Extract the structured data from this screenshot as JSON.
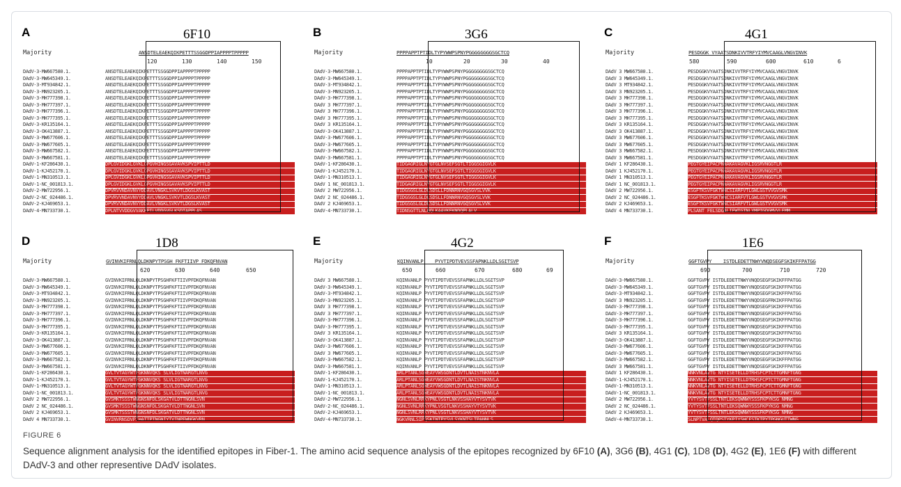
{
  "figure": {
    "label": "FIGURE 6",
    "caption_intro": "Sequence alignment analysis for the identified epitopes in Fiber-1. The amino acid sequence analysis of the epitopes recognized by 6F10 ",
    "caption_parts": [
      {
        "ref": "(A)",
        "sep": ", 3G6 "
      },
      {
        "ref": "(B)",
        "sep": ", 4G1 "
      },
      {
        "ref": "(C)",
        "sep": ", 1D8 "
      },
      {
        "ref": "(D)",
        "sep": ", 4G2 "
      },
      {
        "ref": "(E)",
        "sep": ", 1E6 "
      },
      {
        "ref": "(F)",
        "sep": " with different DAdV-3 and other representive DAdV isolates."
      }
    ]
  },
  "panels": [
    {
      "letter": "A",
      "title": "6F10",
      "majority": "Majority",
      "consensus": "ANSDTELEAEKQIKPETTTSSGGDPPIAPPPPTPPPPP",
      "ticks": [
        "120",
        "130",
        "140",
        "150"
      ],
      "rows": [
        {
          "name": "DAdV-3-MW667580.1.",
          "seq": "ANSDTELEAEKQIKPETTTSSGGDPPIAPPPPTPPPPP"
        },
        {
          "name": "DAdV-3-MW645349.1.",
          "seq": "ANSDTELEAEKQIKPETTTSSGGDPPIAPPPPTPPPPP"
        },
        {
          "name": "DAdV-3-MT934842.1.",
          "seq": "ANSDTELEAEKQIKPETTTSSGGDPPIAPPPPTPPPPP"
        },
        {
          "name": "DAdV-3-MN923205.1.",
          "seq": "ANSDTELEAEKQIKPETTTSSGGDPPIAPPPPTPPPPP"
        },
        {
          "name": "DAdV-3-MH777398.1.",
          "seq": "ANSDTELEAEKQIKPETTTSSGGDPPIAPPPPTPPPPP"
        },
        {
          "name": "DAdV-3-MH777397.1.",
          "seq": "ANSDTELEAEKQIKPETTTSSGGDPPIAPPPPTPPPPP"
        },
        {
          "name": "DAdV-3-MH777396.1.",
          "seq": "ANSDTELEAEKQIKPETTTSSGGDPPIAPPPPTPPPPP"
        },
        {
          "name": "DAdV-3-MH777395.1.",
          "seq": "ANSDTELEAEKQIKPETTTSSGGDPPIAPPPPTPPPPP"
        },
        {
          "name": "DAdV-3-KR135164.1.",
          "seq": "ANSDTELEAEKQIKPETTTSSGGDPPIAPPPPTPPPPP"
        },
        {
          "name": "DAdV-3-OK413887.1.",
          "seq": "ANSDTELEAEKQIKPETTTSSGGDPPIAPPPPTPPPPP"
        },
        {
          "name": "DAdV-3-MW677606.1.",
          "seq": "ANSDTELEAEKQIKPETTTSSGGDPPIAPPPPTPPPPP"
        },
        {
          "name": "DAdV-3-MW677605.1.",
          "seq": "ANSDTELEAEKQIKPETTTSSGGDPPIAPPPPTPPPPP"
        },
        {
          "name": "DAdV-3-MW667582.1.",
          "seq": "ANSDTELEAEKQIKPETTTSSGGDPPIAPPPPTPPPPP"
        },
        {
          "name": "DAdV-3-MW667581.1.",
          "seq": "ANSDTELEAEKQIKPETTTSSGGDPPIAPPPPTPPPPP"
        },
        {
          "name": "DAdV-1-KF286430.1.",
          "seq": "DPLGVIDGKLGVKLGPGVHINGSGAVAVKSPVIPTTLD",
          "red": true
        },
        {
          "name": "DAdV-1-KJ452170.1.",
          "seq": "DPLGVIDGKLGVKLGPGVHINGSGAVAVKSPVIPTTLD",
          "red": true
        },
        {
          "name": "DAdV-1-MN310513.1.",
          "seq": "DPLGVIDGKLGVKLGPGVHINGSGAVAVKSPVIPTTLD",
          "red": true
        },
        {
          "name": "DAdV-1-NC_001813.1.",
          "seq": "DPLGVIDGKLGVKLGPGVHINGSGAVAVKSPVIPTTLD",
          "red": true
        },
        {
          "name": "DAdV-2-MW722956.1.",
          "seq": "DPVRVVNDAVNVYDDAVLVNGKLSVKVTLDGSLKVAST",
          "red": true
        },
        {
          "name": "DAdV-2-NC_024486.1.",
          "seq": "DPVRVVNDAVNVYDDAVLVNGKLSVKVTLDGSLKVAST",
          "red": true
        },
        {
          "name": "DAdV-2-KJ469653.1.",
          "seq": "DPVRVVNDAVNVYDDAVLVNGKLSVKVTLDGSLKVAST",
          "red": true
        },
        {
          "name": "DAdV-4-MN733730.1.",
          "seq": "DPLNTVVDDGVVAKKPILVDDGVGLKSDTAPPLAS",
          "red": true
        }
      ]
    },
    {
      "letter": "B",
      "title": "3G6",
      "majority": "Majority",
      "consensus": "PPPPAPPTPTIDLTYPYWWPSPNYPGGGGGGGGSGCTCQ",
      "ticks": [
        "10",
        "20",
        "30",
        "40"
      ],
      "rows": [
        {
          "name": "DAdV-3-MW667580.1.",
          "seq": "PPPPAPPTPTIDLTYPYWWPSPNYPGGGGGGGGSGCTCQ"
        },
        {
          "name": "DAdV-3-MW645349.1.",
          "seq": "PPPPAPPTPTIDLTYPYWWPSPNYPGGGGGGGGSGCTCQ"
        },
        {
          "name": "DAdV-3-MT934842.1.",
          "seq": "PPPPAPPTPTIDLTYPYWWPSPNYPGGGGGGGGSGCTCQ"
        },
        {
          "name": "DAdV-3-MN923205.1.",
          "seq": "PPPPAPPTPTIDLTYPYWWPSPNYPGGGGGGGGSGCTCQ"
        },
        {
          "name": "DAdV-3-MH777398.1.",
          "seq": "PPPPAPPTPTIDLTYPYWWPSPNYPGGGGGGGGSGCTCQ"
        },
        {
          "name": "DAdV 3 MH777397.1.",
          "seq": "PPPPAPPTPTIDLTYPYWWPSPNYPGGGGGGGGSGCTCQ"
        },
        {
          "name": "DAdV 3 MH777396.1.",
          "seq": "PPPPAPPTPTIDLTYPYWWPSPNYPGGGGGGGGSGCTCQ"
        },
        {
          "name": "DAdV 3 MH777395.1.",
          "seq": "PPPPAPPTPTIDLTYPYWWPSPNYRGGGGGGGGSGCTCQ"
        },
        {
          "name": "DAdV 3 KR135164.1.",
          "seq": "PPPPAPPTPTIDLTYPYWWPSPNYPGGGGGGGGSGCTCQ"
        },
        {
          "name": "DAdV-3-OK413887.1.",
          "seq": "PPPPAPPTPTIDLTYPYWWPSPNYPGGGGGGGGSGCTCQ"
        },
        {
          "name": "DAdV-3-MW677606.1.",
          "seq": "PPPPAPPTPTIDLTYPYWWPSPNYPGGGGGGGGSGCTCQ"
        },
        {
          "name": "DAdV-3-MW677605.1.",
          "seq": "PPPPAPPTPTIDLTYPYWWPSPNYPGGGGGGGGSGCTCQ"
        },
        {
          "name": "DAdV-3-MW667582.1.",
          "seq": "PPPPAPPTPTIDLTYPYWWPSPNYPGGGGGGGGSGCTCQ"
        },
        {
          "name": "DAdV-3-MW667581.1.",
          "seq": "PPPPAPPTPTIDLTYPYWWPSPNYPGGGGGGGGSGCTCQ"
        },
        {
          "name": "DAdV-1-KF286430.1.",
          "seq": "TIDGAGRIGLNYGTGLNVSEFSGTLTIGGSGIGVLK",
          "red": true
        },
        {
          "name": "DAdV-1-KJ452170.1.",
          "seq": "TIDGAGRIGLNYGTGLNVSEFSGTLTIGGSGIGVLK",
          "red": true
        },
        {
          "name": "DAdV-1-MN310513.1.",
          "seq": "TIDGAGRIGLNYGTGLNVSEFSGTLTIGGSGIGVLK",
          "red": true
        },
        {
          "name": "DAdV 1 NC_001813.1.",
          "seq": "TIDGAGRIGLNYGTGLNVSEFSGTLTIGGSGIGVLK",
          "red": true
        },
        {
          "name": "DAdV 2 MW722956.1.",
          "seq": "TIDGSGSLGLDLSDSLLFDNNRNVGQSGVSLVVK",
          "red": true
        },
        {
          "name": "DAdV 2 NC_024486.1.",
          "seq": "TIDGSGSLGLDLSDSLLFDNNRNVGQSGVSLVVK",
          "red": true
        },
        {
          "name": "DAdV 2 KJ469653.1.",
          "seq": "TIDGSGSLGLDLSDSLLFDNNRNVGQSGVSLVVK",
          "red": true
        },
        {
          "name": "DAdV-4-MN733730.1.",
          "seq": "TIDNSGTTLNLQQLKAAVKFKNDQPLALV",
          "red": true
        }
      ]
    },
    {
      "letter": "C",
      "title": "4G1",
      "majority": "Majority",
      "consensus": "PESDGGK VYAATSDNKIVVTRFYIYMVCAAGLVNGVINVK",
      "ticks": [
        "580",
        "590",
        "600",
        "610",
        "6"
      ],
      "rows": [
        {
          "name": "DAdV 3 MW667580.1.",
          "seq": "PESDGGKVYAATSDNKIVVTRFYIYMVCAAGLVNGVINVK"
        },
        {
          "name": "DAdV 3 MW645349.1.",
          "seq": "PESDGGKVYAATSDNKIVVTRFYIYMVCAAGLVNGVINVK"
        },
        {
          "name": "DAdV 3 MT934842.1.",
          "seq": "PESDGGKVYAATSDNKIVVTRFYIYMVCAAGLVNGVINVK"
        },
        {
          "name": "DAdV 3 MN923205.1.",
          "seq": "PESDGGKVYAATSDNKIVVTRFYIYMVCAAGLVNGVINVK"
        },
        {
          "name": "DAdV 3 MH777398.1.",
          "seq": "PESDGGKVYAATSDNKIVVTRFYIYMVCAAGLVNGVINVK"
        },
        {
          "name": "DAdV 3 MH777397.1.",
          "seq": "PESDGGKVYAATSDNKIVVTRFYIYMVCAAGLVNGVINVK"
        },
        {
          "name": "DAdV 3 MH777396.1.",
          "seq": "PESDGGKVYAATSDNKIVVTRFYIYMVCAAGLVNGVINVK"
        },
        {
          "name": "DAdV 3 MH777395.1.",
          "seq": "PESDGGKVYAATSDNKIVVTRFYIYMVCAAGLVNGVINVK"
        },
        {
          "name": "DAdV 3 KR135164.1.",
          "seq": "PESDGGKVYAATSDNKIVVTRFYIYMVCAAGLVNGVINVK"
        },
        {
          "name": "DAdV 3 OK413887.1.",
          "seq": "PESDGGKVYAATSDNKIVVTRFYIYMVCAAGLVNGVINVK"
        },
        {
          "name": "DAdV 3 MW677606.1.",
          "seq": "PESDGGKVYAATSDNKIVVTRFYIYMVCAAGLVNGVINVK"
        },
        {
          "name": "DAdV 3 MW677605.1.",
          "seq": "PESDGGKVYAATSDNKIVVTRFYIYMVCAAGLVNGVINVK"
        },
        {
          "name": "DAdV 3 MW667582.1.",
          "seq": "PESDGGKVYAATSDNKIVVTRFYIYMVCAAGLVNGVINVK"
        },
        {
          "name": "DAdV 3 MW667581.1.",
          "seq": "PESDGGKVYAATSDNKIVVTRFYIYMVCAAGLVNGVINVK"
        },
        {
          "name": "DAdV 1 KF286430.1.",
          "seq": "PEGTGYEIPACPNNAKAVAGVKLIGSRVNGGTLR",
          "red": true
        },
        {
          "name": "DAdV 1 KJ452170.1.",
          "seq": "PEGTGYEIPACPNNAKAVAGVKLIGSRVNGGTLR",
          "red": true
        },
        {
          "name": "DAdV 1 MN310513.1.",
          "seq": "PEGTGYEIPACPNNAKAVAGVKLIGSRVNGGTLR",
          "red": true
        },
        {
          "name": "DAdV 1 NC_001813.1.",
          "seq": "PEGTGYEIPACPNNAKAVAGVKLIGSRVNGGTLR",
          "red": true
        },
        {
          "name": "DAdV 2 MW722956.1.",
          "seq": "ESGFTKSVFGKTWNCSIARFVTLGWLGSTVVGVSMK",
          "red": true
        },
        {
          "name": "DAdV 2 NC_024486.1.",
          "seq": "ESGFTKSVFGKTWNCSIARFVTLGWLGSTVVGVSMK",
          "red": true
        },
        {
          "name": "DAdV 2 KJ469653.1.",
          "seq": "ESGFTKSVFGKTWNCSIARFVTLGWLGSTVVGVSMK",
          "red": true
        },
        {
          "name": "DAdV 4 MN733730.1.",
          "seq": "PLSANT FELSDGALIFWTGTNLYMPTGDGMVVLEMM",
          "red": true
        }
      ]
    },
    {
      "letter": "D",
      "title": "1D8",
      "majority": "Majority",
      "consensus": "GVINVKIFRNLQLDKNPYTPSGH FKFTIIVP FDKQFNVAN",
      "ticks": [
        "620",
        "630",
        "640",
        "650"
      ],
      "rows": [
        {
          "name": "DAdV-3-MW667580.1.",
          "seq": "GVINVKIFRNLQLDKNPYTPSGHFKFTIIVPFDKQFNVAN"
        },
        {
          "name": "DAdV-3-MW645349.1.",
          "seq": "GVINVKIFRNLQLDKNPYTPSGHFKFTIIVPFDKQFNVAN"
        },
        {
          "name": "DAdV-3-MT934842.1.",
          "seq": "GVINVKIFRNLQLDKNPYTPSGHFKFTIIVPFDKQFNVAN"
        },
        {
          "name": "DAdV-3-MN923205.1.",
          "seq": "GVINVKIFRNLQLDKNPYTPSGHFKFTIIVPFDKQFNVAN"
        },
        {
          "name": "DAdV-3-MH777398.1.",
          "seq": "GVINVKIFRNLQLDKNPYTPSGHFKFTIIVPFDKQFNVAN"
        },
        {
          "name": "DAdV-3-MH777397.1.",
          "seq": "GVINVKIFRNLQLDKNPYTPSGHFKFTIIVPFDKQFNVAN"
        },
        {
          "name": "DAdV-3-MH777396.1.",
          "seq": "GVINVKIFRNLQLDKNPYTPSGHFKFTIIVPFDKQFNVAN"
        },
        {
          "name": "DAdV-3-MH777395.1.",
          "seq": "GVINVKIFRNLQLDKNPYTPSGHFKFTIIVPFDKQFNVAN"
        },
        {
          "name": "DAdV-3-KR135164.1.",
          "seq": "GVINVKIFRNLQLDKNPYTPSGHFKFTIIVPFDKQFNVAN"
        },
        {
          "name": "DAdV-3-OK413887.1.",
          "seq": "GVINVKIFRNLQLDKNPYTPSGHFKFTIIVPFDKQFNVAN"
        },
        {
          "name": "DAdV-3-MW677606.1.",
          "seq": "GVINVKIFRNLQLDKNPYTPSGHFKFTIIVPFDKQFNVAN"
        },
        {
          "name": "DAdV-3-MW677605.1.",
          "seq": "GVINVKIFRNLQLDKNPYTPSGHFKFTIIVPFDKQFNVAN"
        },
        {
          "name": "DAdV-3-MW667582.1.",
          "seq": "GVINVKIFRNLQLDKNPYTPSGHFKFTIIVPFDKQFNVAN"
        },
        {
          "name": "DAdV-3-MW667581.1.",
          "seq": "GVINVKIFRNLQLDKNPYTPSGHFKFTIIVPFDKQFNVAN"
        },
        {
          "name": "DAdV-1-KF286430.1.",
          "seq": "GVLTVTAGYWTFGKNNVQKS SLVLIGTNARGTLNVG",
          "red": true
        },
        {
          "name": "DAdV-1-KJ452170.1.",
          "seq": "GVLTVTAGYWTFGKNNVQKS SLVLIGTNARGTLNVG",
          "red": true
        },
        {
          "name": "DAdV-1-MN310513.1.",
          "seq": "GVLTVTAGYWTFGKNNVQKS SLVLIGTNARGTLNVG",
          "red": true
        },
        {
          "name": "DAdV-1-NC_001813.1.",
          "seq": "GVLTVTAGYWTFGKNNVQKS SLVLIGTNARGTLNVG",
          "red": true
        },
        {
          "name": "DAdV 2 MW722956.1.",
          "seq": "GVSMKTSSSTWNGNSNFDLSKGATVLDTTNGNLSVN",
          "red": true
        },
        {
          "name": "DAdV 2 NC_024486.1.",
          "seq": "GVSMKTSSSTWNGNSNFDLSKGATVLDTTNGNLSVN",
          "red": true
        },
        {
          "name": "DAdV 2 KJ469653.1.",
          "seq": "GVSMKTSSSTWNGNSNFDLSKGATVLDTTNGNLSVN",
          "red": true
        },
        {
          "name": "DAdV 4 MN733730.1.",
          "seq": "GVINVRNSDVPIHATTPTNGNIYTVINPEWNGKVRN",
          "red": true
        }
      ]
    },
    {
      "letter": "E",
      "title": "4G2",
      "majority": "Majority",
      "consensus": "KQINVANLP    PYVTIPDTVEVSSFAPNKLLDLSGITSVP",
      "ticks": [
        "650",
        "660",
        "670",
        "680",
        "69"
      ],
      "rows": [
        {
          "name": "DAdV 3 MW667580.1.",
          "seq": "KQINVANLP   PYVTIPDTVEVSSFAPNKLLDLSGITSVP"
        },
        {
          "name": "DAdV-3-MW645349.1.",
          "seq": "KQINVANLP   PYVTIPDTVEVSSFAPNKLLDLSGITSVP"
        },
        {
          "name": "DAdV-3-MT934842.1.",
          "seq": "KQINVANLP   PYVTIPDTVEVSSFAPNKLLDLSGITSVP"
        },
        {
          "name": "DAdV-3-MN923205.1.",
          "seq": "KQINVANLP   PYVTIPDTVEVSSFAPNKLLDLSGITSVP"
        },
        {
          "name": "DAdV 3 MH777398.1.",
          "seq": "KQINVANLP   PYVTIPDTVEVSSFAPNKLLDLSGITSVP"
        },
        {
          "name": "DAdV 3 MH777397.1.",
          "seq": "KQINVANLP   PYVTIPDTVEVSSFAPNKLLDLSGITSVP"
        },
        {
          "name": "DAdV-3-MH777396.1.",
          "seq": "KQINVANLP   PYVTIPDTVEVSSFAPNKLLDLSGITSVP"
        },
        {
          "name": "DAdV-3-MH777395.1.",
          "seq": "KQINVANLP   PYVTIPDTVEVSSFAPNKLLDLSGITSVP"
        },
        {
          "name": "DAdV 3 KR135164.1.",
          "seq": "KQINVANLP   PYVTIPDTVEVSSFAPNKLLDLSGITSVP"
        },
        {
          "name": "DAdV-3-OK413887.1.",
          "seq": "KQINVANLP   PYVTIPDTVEVSSFAPNKLLDLSGITSVP"
        },
        {
          "name": "DAdV-3-MW677606.1.",
          "seq": "KQINVANLP   PYVTIPDTVEVSSFAPNKLLDLSGITSVP"
        },
        {
          "name": "DAdV 3 MW677605.1.",
          "seq": "KQINVANLP   PYVTIPDTVEVSSFAPNKLLDLSGITSVP"
        },
        {
          "name": "DAdV-3-MW667582.1.",
          "seq": "KQINVANLP   PYVTIPDTVEVSSFAPNKLLDLSGITSVP"
        },
        {
          "name": "DAdV-3-MW667581.1.",
          "seq": "KQINVANLP   PYVTIPDTVEVSSFAPNKLLDLSGITSVP"
        },
        {
          "name": "DAdV-1-KF286430.1.",
          "seq": "ARLPTANLSGWEAYVWSGDNTLDVTLNAISTNKNVLA",
          "red": true
        },
        {
          "name": "DAdV-1-KJ452170.1.",
          "seq": "ARLPTANLSGWEAYVWSGDNTLDVTLNAISTNKNVLA",
          "red": true
        },
        {
          "name": "DAdV-1-MN310513.1.",
          "seq": "ARLPTANLSGWEAYVWSGDNTLDVTLNAISTNKNVLA",
          "red": true
        },
        {
          "name": "DAdV-1-NC_001813.1.",
          "seq": "ARLPTANLSGWEAYVWSGDNTLDVTLNAISTNKNVLA",
          "red": true
        },
        {
          "name": "DAdV-2-MW722956.1.",
          "seq": "NGNLSVNLRRKYPNLVSGTLNKVSSHAYVTYSVTVK",
          "red": true
        },
        {
          "name": "DAdV-2-NC_024486.1.",
          "seq": "NGNLSVNLRRKYPNLVSGTLNKVSSHAYVTYSVTVK",
          "red": true
        },
        {
          "name": "DAdV-2-KJ469653.1.",
          "seq": "NGNLSVNLRRKYPNLVSGTLNKVSSHAYVTYSVTVK",
          "red": true
        },
        {
          "name": "DAdV-4-MN733730.1.",
          "seq": "NGKVRNLSIPQSKINTPYSVLSYKNTSLTPANNLS",
          "red": true
        }
      ]
    },
    {
      "letter": "F",
      "title": "1E6",
      "majority": "Majority",
      "consensus": "GGFTGVPY    ISTDLEDETTNWYVNQDSEGFSKIKFFPATGG",
      "ticks": [
        "690",
        "700",
        "710",
        "720"
      ],
      "rows": [
        {
          "name": "DAdV-3-MW667580.1.",
          "seq": "GGFTGVPY   ISTDLEDETTNWYVNQDSEGFSKIKFFPATGG"
        },
        {
          "name": "DAdV-3-MW645349.1.",
          "seq": "GGFTGVPY   ISTDLEDETTNWYVNQDSEGFSKIKFFPATGG"
        },
        {
          "name": "DAdV-3-MT934842.1.",
          "seq": "GGFTGVPY   ISTDLEDETTNWYVNQDSEGFSKIKFFPATGG"
        },
        {
          "name": "DAdV 3 MN923205.1.",
          "seq": "GGFTGVPY   ISTDLEDETTNWYVNQDSEGFRKIKFFPATGG"
        },
        {
          "name": "DAdV-3-MH777398.1.",
          "seq": "GGFTGVPY   ISTDLEDETTNWYVNQDSEGFSKIKFFPATGG"
        },
        {
          "name": "DAdV-3-MH777397.1.",
          "seq": "GGFTGVPY   ISTDLEDETTNWYVNQDSEGFSKIKFFPATGG"
        },
        {
          "name": "DAdV-3-MH777396.1.",
          "seq": "GGFTGVPY   ISTDLEDETTNWYVNQDSEGFSKIKFFPATGG"
        },
        {
          "name": "DAdV-3-MH777395.1.",
          "seq": "GGFTGVPY   ISTDLEDETTNWYVNQDSEGFSKIKFFPATGG"
        },
        {
          "name": "DAdV 3 KR135164.1.",
          "seq": "GGFTGVPY   ISTDLEDETTNWYVNQDSEGFSKIKFFPATGG"
        },
        {
          "name": "DAdV-3-OK413887.1.",
          "seq": "GGFTGVPY   ISTDLEDETTNWYVNQDSEGFSKIKFFPATGG"
        },
        {
          "name": "DAdV-3-MW677606.1.",
          "seq": "GGFTGVPY   ISTDLEDETTNWYVNQDSEGFSKIKFFPATGG"
        },
        {
          "name": "DAdV-3-MW677605.1.",
          "seq": "GGFTGVPY   ISTDLEDETTNWYVNQDSEGFSKIKFFPATGG"
        },
        {
          "name": "DAdV-3-MW667582.1.",
          "seq": "GGFTGVPY   ISTDLEDETTNWYVNQDSEGFSKIKFFPATGG"
        },
        {
          "name": "DAdV 3 MW667581.1.",
          "seq": "GGFTGVPY   ISTDLEDETTNWYVNQDSEGFSKIKFFPATGG"
        },
        {
          "name": "DAdV 1 KF286430.1.",
          "seq": "NNKVNLAVTG  NTYISETELLDTRHSFCPTCTTGMNFTGNG",
          "red": true
        },
        {
          "name": "DAdV-1-KJ452170.1.",
          "seq": "NNKVNLAVTG  NTYISETELLDTRHSFCPTCTTGMNFTGNG",
          "red": true
        },
        {
          "name": "DAdV-1-MN310513.1.",
          "seq": "NNKVNLAVTG  NTYISETELLDTRHSFCPTCTTGMNFTGNG",
          "red": true
        },
        {
          "name": "DAdV-1-NC_001813.1.",
          "seq": "NNKVNLAVTG  NTYISETELLDTRHSFCPTCTTGMNFTGNG",
          "red": true
        },
        {
          "name": "DAdV 2 MW722956.1.",
          "seq": "YVTYSVTFSSLTNTLEKSQWNWYSSSFKPYKSG   NMNG",
          "red": true
        },
        {
          "name": "DAdV 2 NC_024486.1.",
          "seq": "YVTYSVTFSSLTNTLEKSQWNWYSSSFKPYKSG   NMNG",
          "red": true
        },
        {
          "name": "DAdV 2 KJ469653.1.",
          "seq": "YVTYSVTFSSLTNTLEKSQWNWYSSSFKPYKSG   NMNG",
          "red": true
        },
        {
          "name": "DAdV-4-MN733730.1.",
          "seq": "SLNPTVALQTQPSTYKPIYSHCFSTKTPYTPGNGUTTWNG",
          "red": true
        }
      ]
    }
  ]
}
